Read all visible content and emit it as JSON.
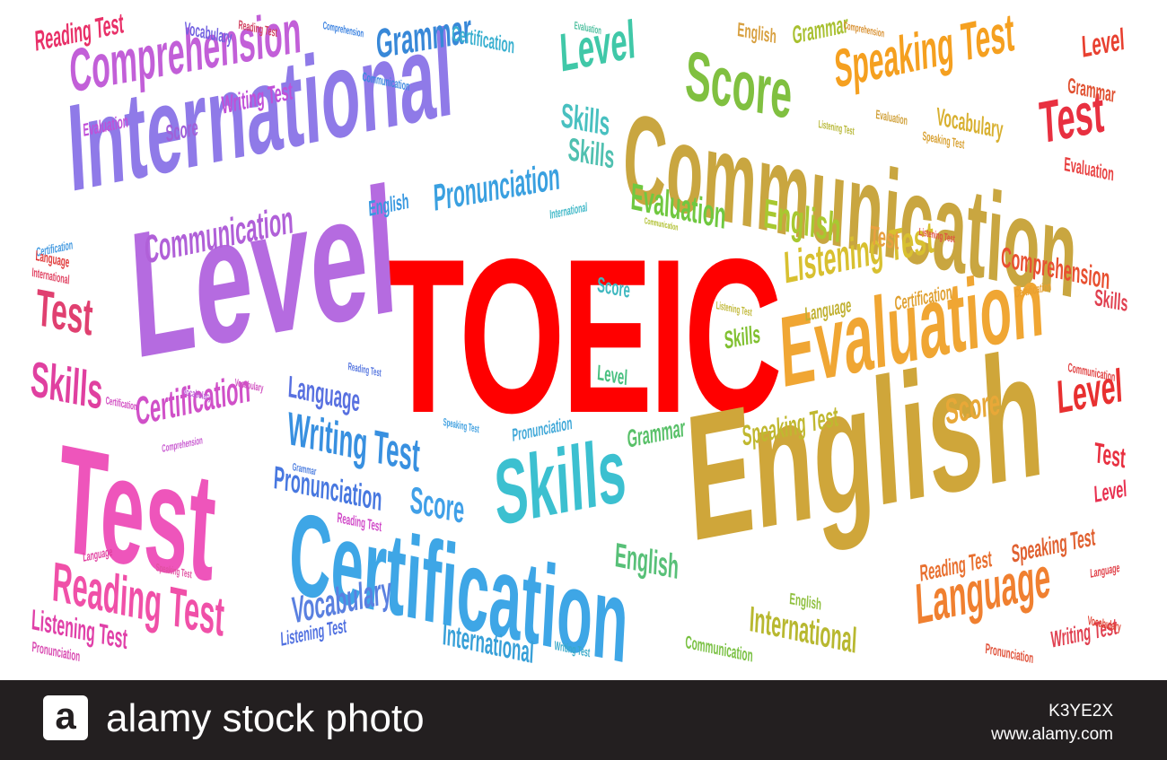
{
  "words": [
    {
      "text": "TOEIC",
      "color": "#ff0000"
    },
    {
      "text": "International",
      "color": "#8f7ae8"
    },
    {
      "text": "Level",
      "color": "#b56be0"
    },
    {
      "text": "Communication",
      "color": "#c9a640"
    },
    {
      "text": "English",
      "color": "#cfa63a"
    },
    {
      "text": "Test",
      "color": "#ee55bb"
    },
    {
      "text": "Certification",
      "color": "#3ea6e6"
    },
    {
      "text": "Evaluation",
      "color": "#f0a633"
    },
    {
      "text": "Skills",
      "color": "#3cc0d0"
    },
    {
      "text": "Comprehension",
      "color": "#c25fd8"
    },
    {
      "text": "Reading Test",
      "color": "#f050a8"
    },
    {
      "text": "Speaking Test",
      "color": "#f5a020"
    },
    {
      "text": "Score",
      "color": "#80c040"
    },
    {
      "text": "Writing Test",
      "color": "#3890e0"
    },
    {
      "text": "Language",
      "color": "#f08030"
    },
    {
      "text": "Listening Test",
      "color": "#d8c030"
    },
    {
      "text": "Grammar",
      "color": "#3888d8"
    },
    {
      "text": "Level",
      "color": "#40c8a8"
    },
    {
      "text": "Pronunciation",
      "color": "#3aa0e0"
    },
    {
      "text": "Vocabulary",
      "color": "#5a80e0"
    },
    {
      "text": "Communication",
      "color": "#b060d8"
    },
    {
      "text": "Evaluation",
      "color": "#70c840"
    },
    {
      "text": "English",
      "color": "#a8c830"
    },
    {
      "text": "Test",
      "color": "#e83040"
    },
    {
      "text": "Level",
      "color": "#e83030"
    },
    {
      "text": "Test",
      "color": "#e04070"
    },
    {
      "text": "Skills",
      "color": "#e040a0"
    },
    {
      "text": "Certification",
      "color": "#d050c8"
    },
    {
      "text": "Reading Test",
      "color": "#e83068"
    },
    {
      "text": "Writing Test",
      "color": "#c050d8"
    },
    {
      "text": "Listening Test",
      "color": "#e040a8"
    },
    {
      "text": "Score",
      "color": "#a060d8"
    },
    {
      "text": "Language",
      "color": "#5870e0"
    },
    {
      "text": "Score",
      "color": "#40a0e8"
    },
    {
      "text": "Pronunciation",
      "color": "#4878e0"
    },
    {
      "text": "International",
      "color": "#38a0d8"
    },
    {
      "text": "Skills",
      "color": "#48c0c0"
    },
    {
      "text": "Skills",
      "color": "#50c0b0"
    },
    {
      "text": "Grammar",
      "color": "#58c068"
    },
    {
      "text": "English",
      "color": "#58c078"
    },
    {
      "text": "International",
      "color": "#b8b830"
    },
    {
      "text": "Vocabulary",
      "color": "#d8b030"
    },
    {
      "text": "English",
      "color": "#d8a040"
    },
    {
      "text": "Test",
      "color": "#e8a040"
    },
    {
      "text": "Level",
      "color": "#e84030"
    },
    {
      "text": "Test",
      "color": "#e83040"
    },
    {
      "text": "Grammar",
      "color": "#e05030"
    },
    {
      "text": "Level",
      "color": "#e83050"
    },
    {
      "text": "Comprehension",
      "color": "#e85030"
    },
    {
      "text": "Skills",
      "color": "#e04050"
    },
    {
      "text": "Score",
      "color": "#e8a838"
    },
    {
      "text": "Grammar",
      "color": "#a8c030"
    },
    {
      "text": "English",
      "color": "#90c040"
    },
    {
      "text": "Speaking Test",
      "color": "#e06030"
    },
    {
      "text": "Reading Test",
      "color": "#e87030"
    },
    {
      "text": "Writing Test",
      "color": "#e04050"
    },
    {
      "text": "Certification",
      "color": "#e0a030"
    },
    {
      "text": "Evaluation",
      "color": "#e84040"
    },
    {
      "text": "Communication",
      "color": "#e04040"
    },
    {
      "text": "Vocabulary",
      "color": "#e04030"
    },
    {
      "text": "Pronunciation",
      "color": "#e05038"
    },
    {
      "text": "Communication",
      "color": "#78c040"
    },
    {
      "text": "Score",
      "color": "#40b8c0"
    },
    {
      "text": "Level",
      "color": "#48c080"
    },
    {
      "text": "Skills",
      "color": "#80c030"
    },
    {
      "text": "Language",
      "color": "#c0b030"
    },
    {
      "text": "English",
      "color": "#3898e0"
    },
    {
      "text": "Pronunciation",
      "color": "#40a8d8"
    },
    {
      "text": "Listening Test",
      "color": "#5070e0"
    },
    {
      "text": "Vocabulary",
      "color": "#7060e0"
    },
    {
      "text": "Certification",
      "color": "#3ab0d0"
    },
    {
      "text": "Writing Test",
      "color": "#38a8c8"
    },
    {
      "text": "Speaking Test",
      "color": "#c0b830"
    },
    {
      "text": "Reading Test",
      "color": "#d048c8"
    },
    {
      "text": "Pronunciation",
      "color": "#d848b0"
    },
    {
      "text": "Language",
      "color": "#e040a0"
    },
    {
      "text": "Speaking Test",
      "color": "#e050a0"
    },
    {
      "text": "Vocabulary",
      "color": "#d050c0"
    },
    {
      "text": "Certification",
      "color": "#d048c0"
    },
    {
      "text": "Comprehension",
      "color": "#c858d0"
    },
    {
      "text": "Evaluation",
      "color": "#c050d8"
    },
    {
      "text": "Vocabulary",
      "color": "#c060d8"
    },
    {
      "text": "Reading Test",
      "color": "#5878e0"
    },
    {
      "text": "Grammar",
      "color": "#5080e0"
    },
    {
      "text": "Speaking Test",
      "color": "#40a0e0"
    },
    {
      "text": "Comprehension",
      "color": "#3880e0"
    },
    {
      "text": "Communication",
      "color": "#3a88e0"
    },
    {
      "text": "Certification",
      "color": "#4098e0"
    },
    {
      "text": "Evaluation",
      "color": "#50c0a0"
    },
    {
      "text": "International",
      "color": "#40b8c8"
    },
    {
      "text": "Communication",
      "color": "#b0c030"
    },
    {
      "text": "Listening Test",
      "color": "#c0b830"
    },
    {
      "text": "Evaluation",
      "color": "#d0a038"
    },
    {
      "text": "Comprehension",
      "color": "#d89030"
    },
    {
      "text": "Speaking Test",
      "color": "#d8a030"
    },
    {
      "text": "Listening Test",
      "color": "#b8b838"
    },
    {
      "text": "Certification",
      "color": "#e8a030"
    },
    {
      "text": "Listening Test",
      "color": "#e05040"
    },
    {
      "text": "Reading Test",
      "color": "#d04060"
    },
    {
      "text": "International",
      "color": "#e04060"
    },
    {
      "text": "Language",
      "color": "#e03838"
    },
    {
      "text": "Language",
      "color": "#e04048"
    }
  ],
  "footer": {
    "logo_letter": "a",
    "brand": "alamy stock photo",
    "image_id": "K3YE2X",
    "site": "www.alamy.com"
  }
}
